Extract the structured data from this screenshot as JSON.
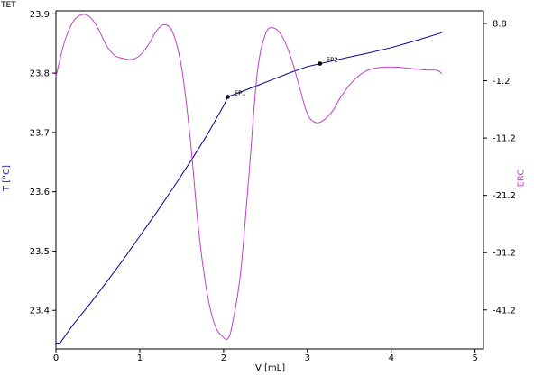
{
  "title": "TET",
  "chart_data": {
    "type": "line",
    "xlabel": "V [mL]",
    "ylabel_left": "T [°C]",
    "ylabel_right": "ERC",
    "xlim": [
      0,
      5.1
    ],
    "ylim_left": [
      23.335,
      23.905
    ],
    "ylim_right": [
      -48.0,
      11.0
    ],
    "x_ticks": [
      "0",
      "1",
      "2",
      "3",
      "4",
      "5"
    ],
    "y_ticks_left": [
      "23.9",
      "23.8",
      "23.7",
      "23.6",
      "23.5",
      "23.4"
    ],
    "y_ticks_right": [
      "8.8",
      "-1.2",
      "-11.2",
      "-21.2",
      "-31.2",
      "-41.2"
    ],
    "grid": false,
    "series": [
      {
        "name": "T [°C]",
        "axis": "left",
        "color": "#0000a0",
        "x": [
          0.0,
          0.05,
          0.2,
          0.4,
          0.6,
          0.8,
          1.0,
          1.2,
          1.4,
          1.6,
          1.8,
          2.0,
          2.05,
          2.2,
          2.4,
          2.6,
          2.8,
          3.0,
          3.15,
          3.4,
          3.7,
          4.0,
          4.3,
          4.6
        ],
        "y": [
          23.345,
          23.345,
          23.375,
          23.41,
          23.447,
          23.485,
          23.525,
          23.565,
          23.607,
          23.65,
          23.695,
          23.745,
          23.76,
          23.768,
          23.779,
          23.79,
          23.801,
          23.811,
          23.816,
          23.824,
          23.833,
          23.843,
          23.855,
          23.868
        ]
      },
      {
        "name": "ERC",
        "axis": "right",
        "color": "#c040c8",
        "x": [
          0.0,
          0.1,
          0.2,
          0.3,
          0.4,
          0.5,
          0.6,
          0.7,
          0.8,
          0.9,
          1.0,
          1.1,
          1.2,
          1.3,
          1.4,
          1.5,
          1.6,
          1.7,
          1.8,
          1.9,
          2.0,
          2.05,
          2.1,
          2.2,
          2.3,
          2.4,
          2.5,
          2.6,
          2.7,
          2.8,
          2.9,
          3.0,
          3.1,
          3.2,
          3.3,
          3.4,
          3.5,
          3.6,
          3.7,
          3.8,
          4.0,
          4.2,
          4.4,
          4.55,
          4.6
        ],
        "y": [
          -0.5,
          5.5,
          9.0,
          10.3,
          10.0,
          8.0,
          5.0,
          3.2,
          2.7,
          2.5,
          3.2,
          5.0,
          7.5,
          8.6,
          7.0,
          1.0,
          -11.0,
          -27.0,
          -38.0,
          -44.0,
          -46.0,
          -46.2,
          -44.0,
          -35.0,
          -18.0,
          0.0,
          7.0,
          8.0,
          6.5,
          3.0,
          -2.0,
          -7.0,
          -8.5,
          -8.0,
          -6.5,
          -4.0,
          -2.0,
          -0.5,
          0.5,
          1.0,
          1.2,
          1.0,
          0.7,
          0.6,
          0.0
        ]
      }
    ],
    "markers": [
      {
        "label": "EP1",
        "x": 2.05,
        "y": 23.76
      },
      {
        "label": "EP2",
        "x": 3.15,
        "y": 23.816
      }
    ]
  }
}
